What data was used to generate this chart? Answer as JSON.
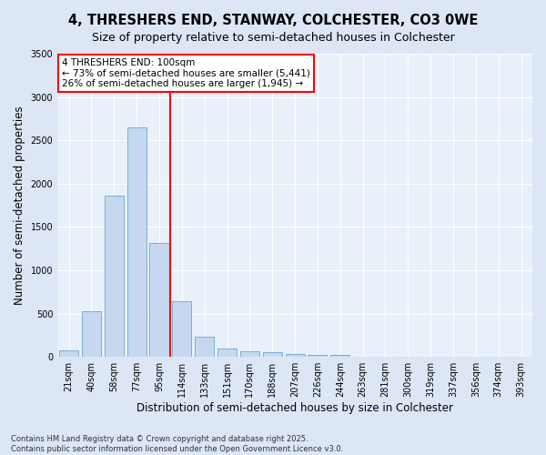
{
  "title": "4, THRESHERS END, STANWAY, COLCHESTER, CO3 0WE",
  "subtitle": "Size of property relative to semi-detached houses in Colchester",
  "xlabel": "Distribution of semi-detached houses by size in Colchester",
  "ylabel": "Number of semi-detached properties",
  "categories": [
    "21sqm",
    "40sqm",
    "58sqm",
    "77sqm",
    "95sqm",
    "114sqm",
    "133sqm",
    "151sqm",
    "170sqm",
    "188sqm",
    "207sqm",
    "226sqm",
    "244sqm",
    "263sqm",
    "281sqm",
    "300sqm",
    "319sqm",
    "337sqm",
    "356sqm",
    "374sqm",
    "393sqm"
  ],
  "values": [
    75,
    530,
    1860,
    2650,
    1310,
    640,
    230,
    95,
    60,
    50,
    30,
    25,
    20,
    0,
    0,
    0,
    0,
    0,
    0,
    0,
    0
  ],
  "bar_color": "#c5d8f0",
  "bar_edge_color": "#7aafd4",
  "vline_color": "red",
  "vline_x_idx": 4,
  "annotation_line1": "4 THRESHERS END: 100sqm",
  "annotation_line2": "← 73% of semi-detached houses are smaller (5,441)",
  "annotation_line3": "26% of semi-detached houses are larger (1,945) →",
  "annotation_box_color": "red",
  "ylim": [
    0,
    3500
  ],
  "yticks": [
    0,
    500,
    1000,
    1500,
    2000,
    2500,
    3000,
    3500
  ],
  "bg_color": "#dce6f5",
  "plot_bg_color": "#e8f0fa",
  "footer": "Contains HM Land Registry data © Crown copyright and database right 2025.\nContains public sector information licensed under the Open Government Licence v3.0.",
  "title_fontsize": 10.5,
  "subtitle_fontsize": 9,
  "axis_label_fontsize": 8.5,
  "tick_fontsize": 7,
  "annotation_fontsize": 7.5,
  "footer_fontsize": 6
}
